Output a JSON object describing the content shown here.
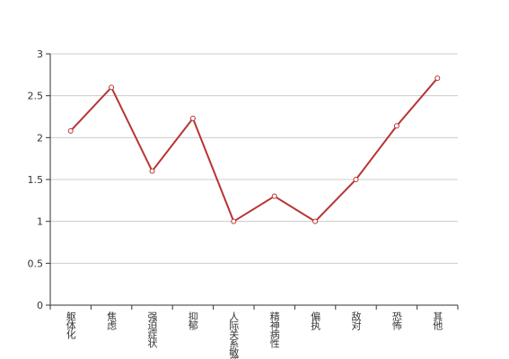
{
  "chart_data": {
    "type": "line",
    "categories": [
      "躯体化",
      "焦虑",
      "强迫症状",
      "抑郁",
      "人际关系敏感",
      "精神病性",
      "偏执",
      "敌对",
      "恐怖",
      "其他"
    ],
    "series": [
      {
        "color": "#b83434",
        "values": [
          2.08,
          2.6,
          1.6,
          2.23,
          1.0,
          1.3,
          1.0,
          1.5,
          2.14,
          2.71
        ]
      }
    ],
    "ylim": [
      0,
      3
    ],
    "yticks": [
      0,
      0.5,
      1,
      1.5,
      2,
      2.5,
      3
    ],
    "grid": true
  }
}
